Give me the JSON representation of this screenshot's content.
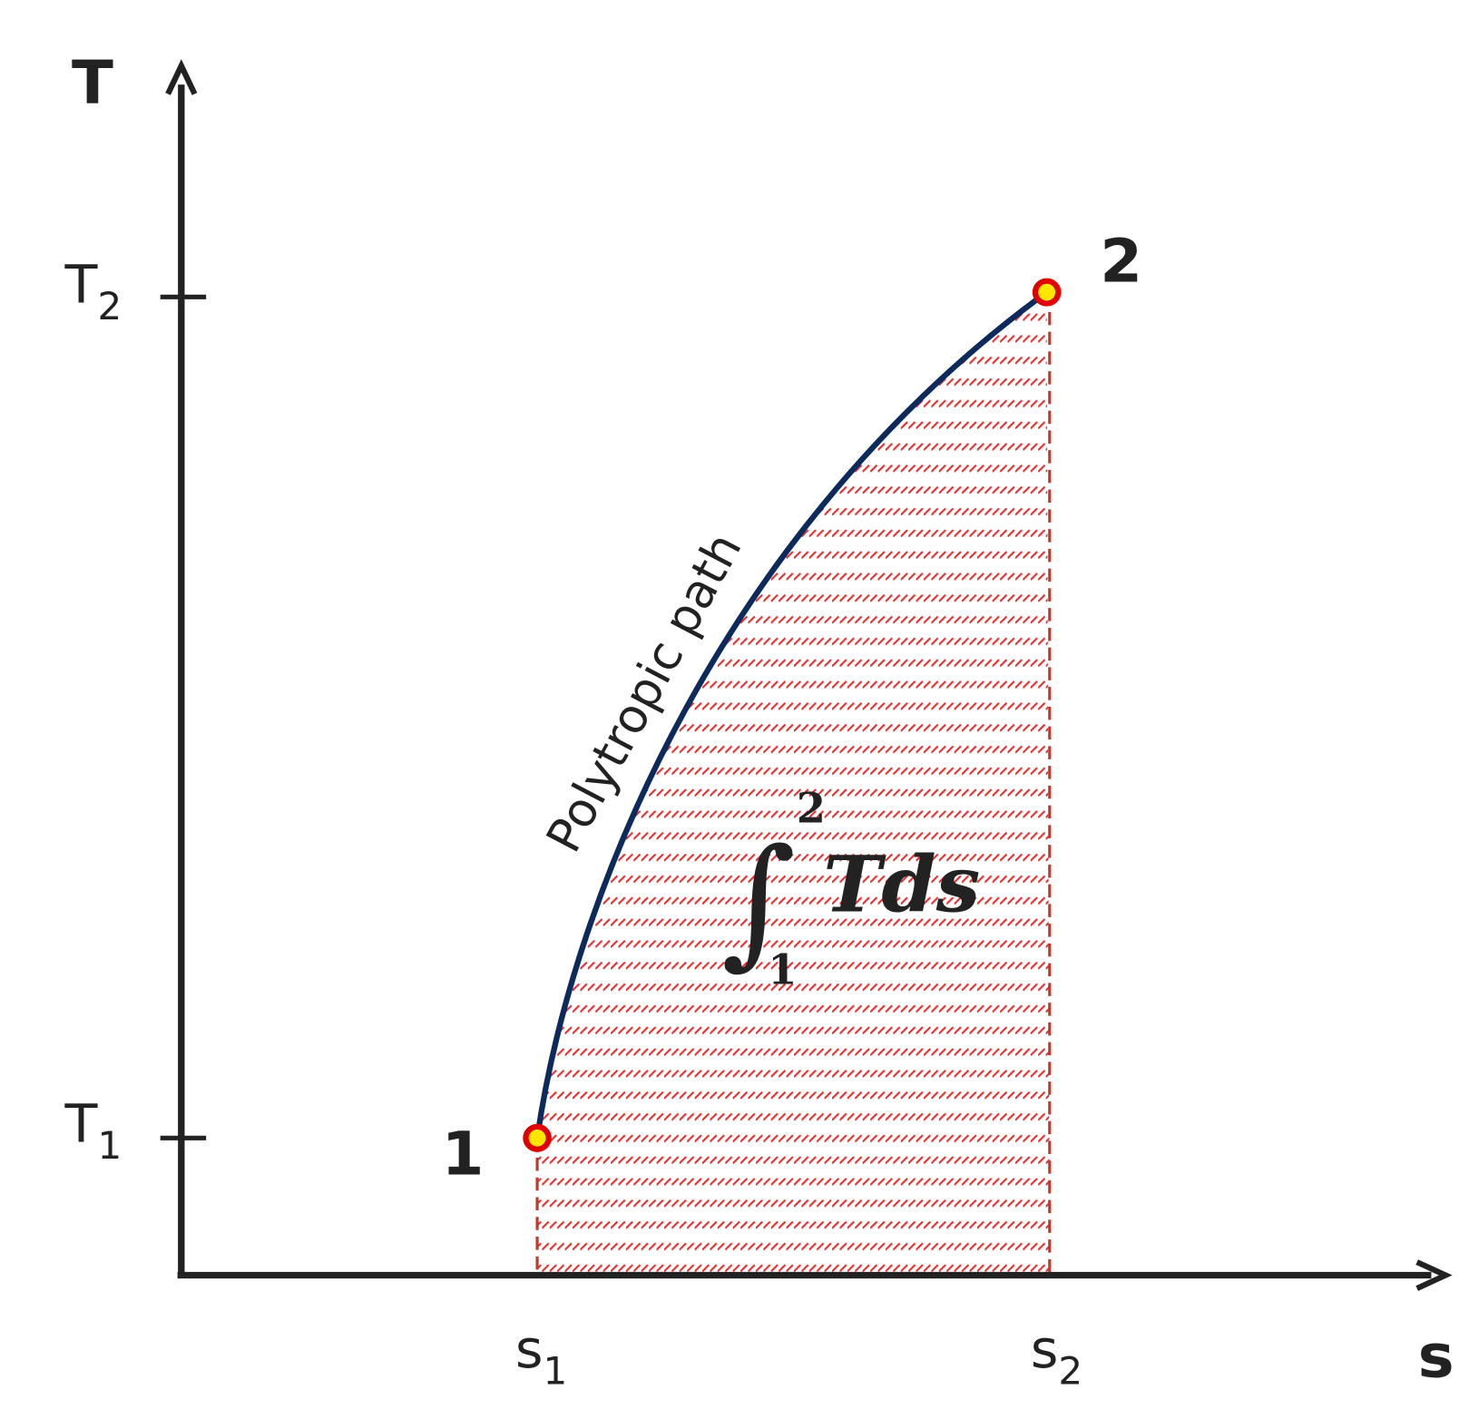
{
  "axes": {
    "y_label": "T",
    "x_label": "s"
  },
  "y_ticks": [
    {
      "base": "T",
      "sub": "2"
    },
    {
      "base": "T",
      "sub": "1"
    }
  ],
  "x_ticks": [
    {
      "base": "s",
      "sub": "1"
    },
    {
      "base": "s",
      "sub": "2"
    }
  ],
  "points": [
    {
      "label": "1"
    },
    {
      "label": "2"
    }
  ],
  "curve_label": "Polytropic path",
  "integral": {
    "symbol": "∫",
    "upper": "2",
    "lower": "1",
    "integrand": "Tds"
  }
}
